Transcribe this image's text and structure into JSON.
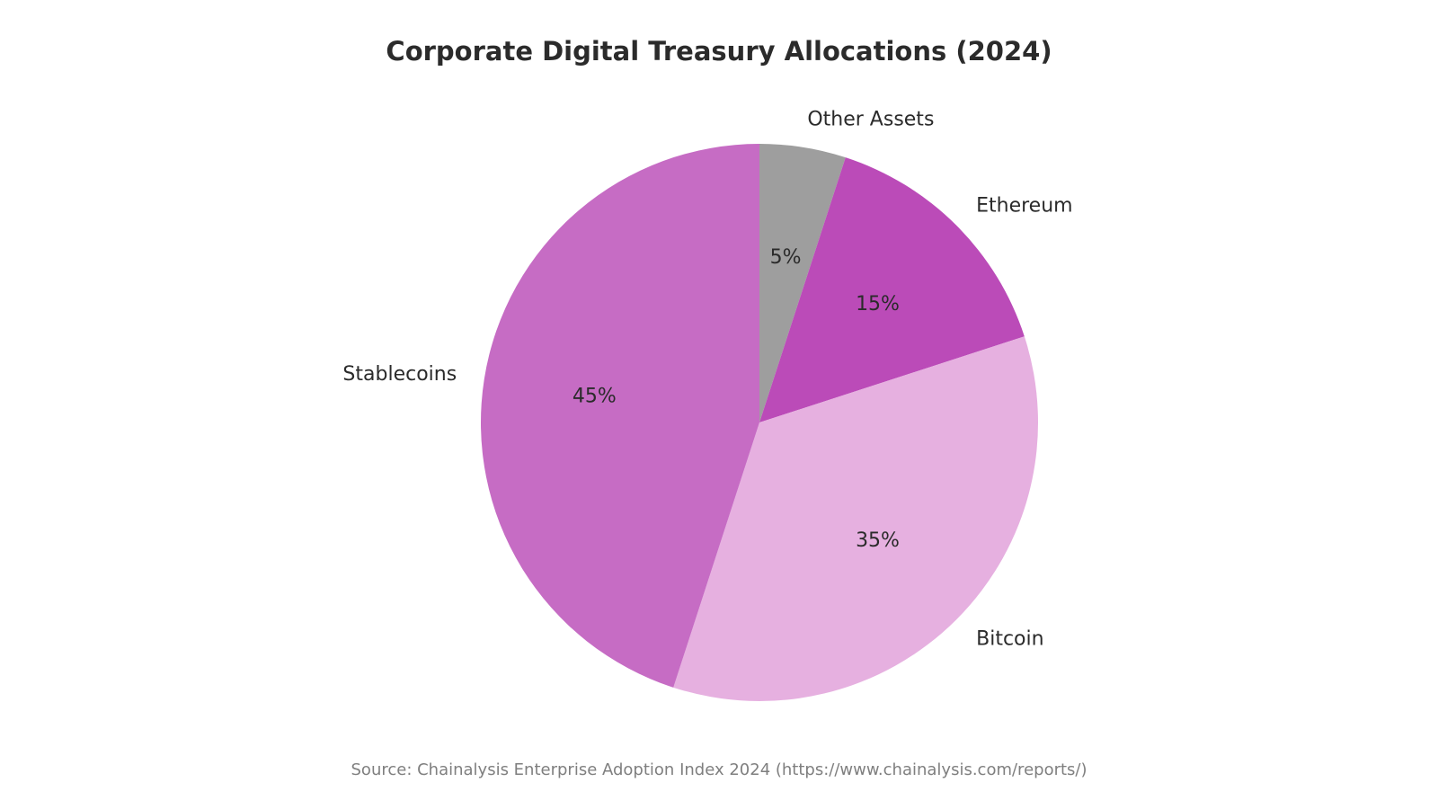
{
  "chart_data": {
    "type": "pie",
    "title": "Corporate Digital Treasury Allocations (2024)",
    "categories": [
      "Other Assets",
      "Ethereum",
      "Bitcoin",
      "Stablecoins"
    ],
    "values": [
      5,
      15,
      35,
      45
    ],
    "value_labels": [
      "5%",
      "15%",
      "35%",
      "45%"
    ],
    "colors": [
      "#9e9e9e",
      "#bb4bb8",
      "#e6b0e0",
      "#c66cc4"
    ],
    "start_angle_deg": 90,
    "direction": "clockwise",
    "legend": "none"
  },
  "source": "Source: Chainalysis Enterprise Adoption Index 2024 (https://www.chainalysis.com/reports/)"
}
